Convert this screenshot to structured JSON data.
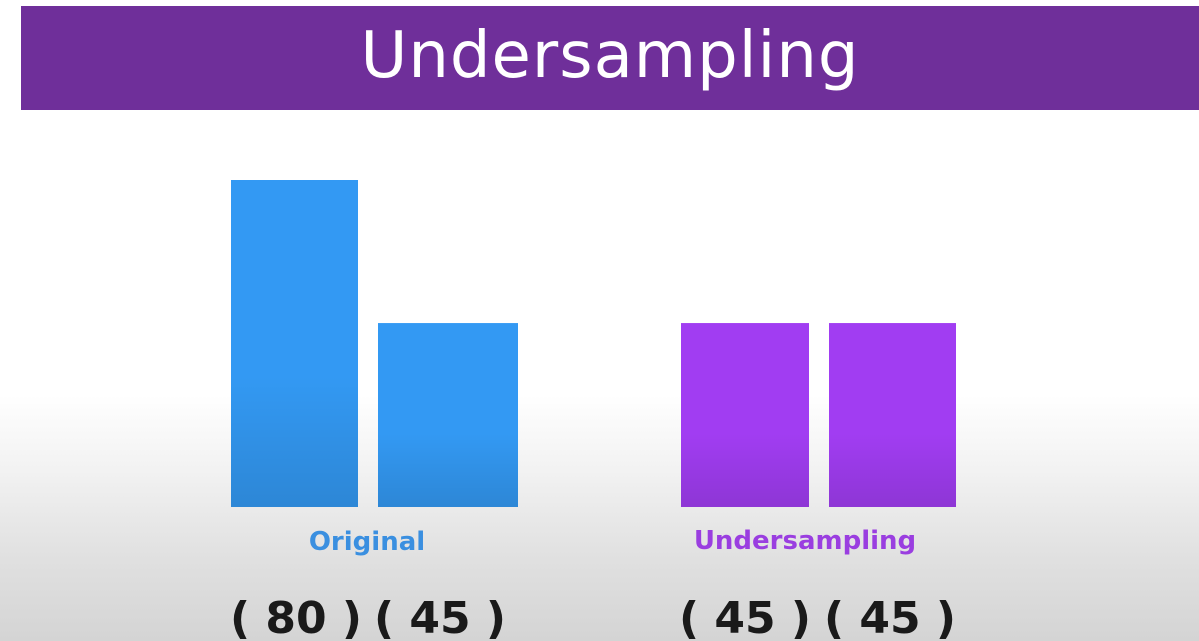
{
  "header": {
    "title": "Undersampling"
  },
  "colors": {
    "banner": "#6f2f9a",
    "original": "#3399f3",
    "original_label": "#3a8fe0",
    "undersampled": "#a13df2",
    "undersampled_label": "#9a3ee0"
  },
  "chart_data": [
    {
      "type": "bar",
      "group_label": "Original",
      "categories": [
        "",
        ""
      ],
      "values": [
        80,
        45
      ],
      "count_labels": [
        "( 80 )",
        "( 45 )"
      ],
      "ylim": [
        0,
        80
      ],
      "color": "#3399f3"
    },
    {
      "type": "bar",
      "group_label": "Undersampling",
      "categories": [
        "",
        ""
      ],
      "values": [
        45,
        45
      ],
      "count_labels": [
        "( 45 )",
        "( 45 )"
      ],
      "ylim": [
        0,
        80
      ],
      "color": "#a13df2"
    }
  ]
}
